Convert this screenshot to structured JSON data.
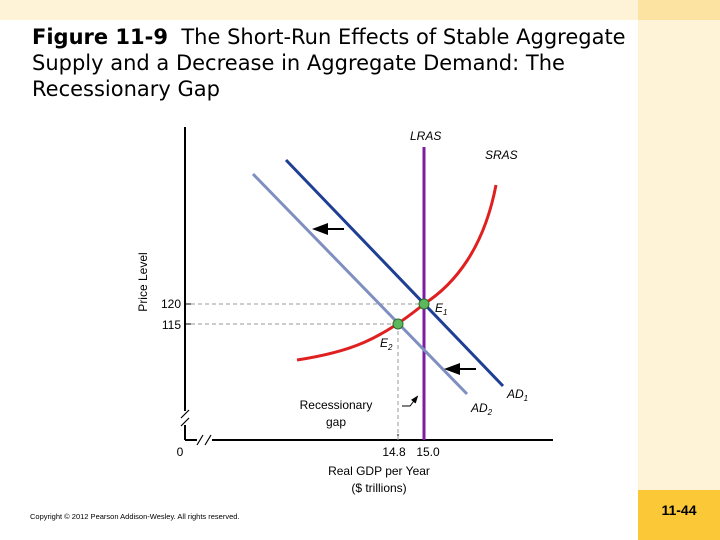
{
  "title": {
    "figure_number": "Figure 11-9",
    "caption": "The Short-Run Effects of Stable Aggregate Supply and a Decrease in Aggregate Demand: The Recessionary Gap"
  },
  "chart_data": {
    "type": "line",
    "xlabel": [
      "Real GDP per Year",
      "($ trillions)"
    ],
    "ylabel": "Price Level",
    "x_ticks": [
      "14.8",
      "15.0"
    ],
    "y_ticks": [
      "120",
      "115"
    ],
    "origin_label": "0",
    "curves": {
      "lras": "LRAS",
      "sras": "SRAS",
      "ad1": {
        "name": "AD",
        "sub": "1"
      },
      "ad2": {
        "name": "AD",
        "sub": "2"
      }
    },
    "points": [
      {
        "name": "E",
        "sub": "1",
        "x": 15.0,
        "y": 120
      },
      {
        "name": "E",
        "sub": "2",
        "x": 14.8,
        "y": 115
      }
    ],
    "annotation": [
      "Recessionary",
      "gap"
    ],
    "colors": {
      "lras": "#7b1fa2",
      "sras": "#e02020",
      "ad1": "#1f3f94",
      "ad2": "#7f8fbf",
      "point": "#5cb85c"
    }
  },
  "footer": {
    "copyright": "Copyright © 2012 Pearson Addison-Wesley. All rights reserved.",
    "page_number": "11-44"
  }
}
